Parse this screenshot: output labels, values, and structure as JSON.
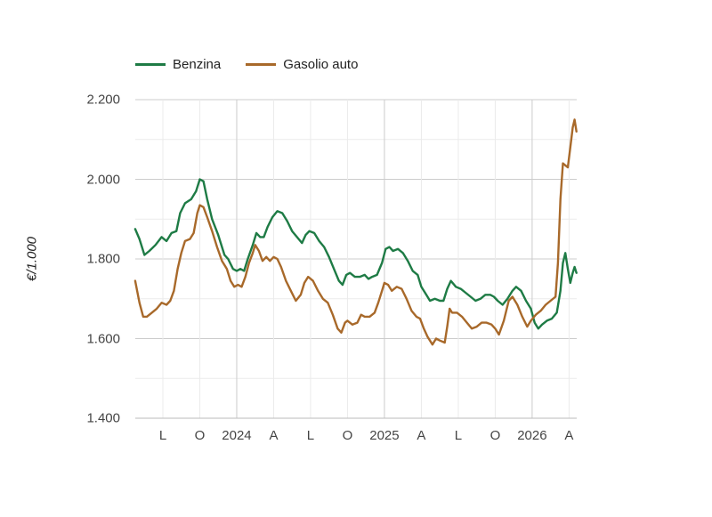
{
  "chart_data": {
    "type": "line",
    "title": "",
    "xlabel": "",
    "ylabel": "€/1.000",
    "ylim": [
      1.4,
      2.2
    ],
    "yticks": [
      "1.400",
      "1.600",
      "1.800",
      "2.000",
      "2.200"
    ],
    "ytick_values": [
      1.4,
      1.6,
      1.8,
      2.0,
      2.2
    ],
    "xticks": [
      "L",
      "O",
      "2024",
      "A",
      "L",
      "O",
      "2025",
      "A",
      "L",
      "O",
      "2026",
      "A"
    ],
    "xtick_months": [
      0,
      3,
      6,
      9,
      12,
      15,
      18,
      21,
      24,
      27,
      30,
      33
    ],
    "x_unit": "months since Jul 2023",
    "xlim": [
      -2.25,
      33.6
    ],
    "grid": true,
    "legend_position": "top",
    "series": [
      {
        "name": "Benzina",
        "color": "#1e7b45",
        "points": [
          [
            -2.25,
            1.875
          ],
          [
            -1.9,
            1.85
          ],
          [
            -1.5,
            1.81
          ],
          [
            -1.1,
            1.82
          ],
          [
            -0.6,
            1.835
          ],
          [
            -0.1,
            1.855
          ],
          [
            0.3,
            1.845
          ],
          [
            0.7,
            1.865
          ],
          [
            1.1,
            1.87
          ],
          [
            1.4,
            1.915
          ],
          [
            1.8,
            1.94
          ],
          [
            2.3,
            1.95
          ],
          [
            2.7,
            1.97
          ],
          [
            3.0,
            2.0
          ],
          [
            3.3,
            1.995
          ],
          [
            3.6,
            1.95
          ],
          [
            4.0,
            1.9
          ],
          [
            4.5,
            1.86
          ],
          [
            5.0,
            1.81
          ],
          [
            5.3,
            1.8
          ],
          [
            5.7,
            1.775
          ],
          [
            6.0,
            1.77
          ],
          [
            6.3,
            1.775
          ],
          [
            6.6,
            1.77
          ],
          [
            6.9,
            1.8
          ],
          [
            7.3,
            1.835
          ],
          [
            7.6,
            1.865
          ],
          [
            7.9,
            1.855
          ],
          [
            8.2,
            1.855
          ],
          [
            8.5,
            1.88
          ],
          [
            8.9,
            1.905
          ],
          [
            9.3,
            1.92
          ],
          [
            9.7,
            1.915
          ],
          [
            10.1,
            1.895
          ],
          [
            10.5,
            1.87
          ],
          [
            10.9,
            1.855
          ],
          [
            11.3,
            1.84
          ],
          [
            11.6,
            1.86
          ],
          [
            11.9,
            1.87
          ],
          [
            12.3,
            1.865
          ],
          [
            12.7,
            1.845
          ],
          [
            13.1,
            1.83
          ],
          [
            13.5,
            1.805
          ],
          [
            13.9,
            1.775
          ],
          [
            14.3,
            1.745
          ],
          [
            14.6,
            1.735
          ],
          [
            14.9,
            1.76
          ],
          [
            15.2,
            1.765
          ],
          [
            15.6,
            1.755
          ],
          [
            16.0,
            1.755
          ],
          [
            16.4,
            1.76
          ],
          [
            16.7,
            1.75
          ],
          [
            17.0,
            1.755
          ],
          [
            17.4,
            1.76
          ],
          [
            17.8,
            1.79
          ],
          [
            18.1,
            1.825
          ],
          [
            18.4,
            1.83
          ],
          [
            18.7,
            1.82
          ],
          [
            19.1,
            1.825
          ],
          [
            19.5,
            1.815
          ],
          [
            19.9,
            1.795
          ],
          [
            20.3,
            1.77
          ],
          [
            20.7,
            1.76
          ],
          [
            21.0,
            1.73
          ],
          [
            21.4,
            1.71
          ],
          [
            21.7,
            1.695
          ],
          [
            22.1,
            1.7
          ],
          [
            22.5,
            1.695
          ],
          [
            22.8,
            1.695
          ],
          [
            23.1,
            1.725
          ],
          [
            23.4,
            1.745
          ],
          [
            23.8,
            1.73
          ],
          [
            24.2,
            1.725
          ],
          [
            24.6,
            1.715
          ],
          [
            25.0,
            1.705
          ],
          [
            25.4,
            1.695
          ],
          [
            25.8,
            1.7
          ],
          [
            26.2,
            1.71
          ],
          [
            26.6,
            1.71
          ],
          [
            26.9,
            1.705
          ],
          [
            27.2,
            1.695
          ],
          [
            27.6,
            1.685
          ],
          [
            28.0,
            1.7
          ],
          [
            28.4,
            1.72
          ],
          [
            28.7,
            1.73
          ],
          [
            29.1,
            1.72
          ],
          [
            29.5,
            1.695
          ],
          [
            29.9,
            1.675
          ],
          [
            30.2,
            1.64
          ],
          [
            30.5,
            1.625
          ],
          [
            30.8,
            1.635
          ],
          [
            31.2,
            1.645
          ],
          [
            31.6,
            1.65
          ],
          [
            32.0,
            1.665
          ],
          [
            32.3,
            1.72
          ],
          [
            32.5,
            1.79
          ],
          [
            32.7,
            1.815
          ],
          [
            32.9,
            1.775
          ],
          [
            33.1,
            1.74
          ],
          [
            33.3,
            1.765
          ],
          [
            33.45,
            1.78
          ],
          [
            33.6,
            1.765
          ]
        ]
      },
      {
        "name": "Gasolio auto",
        "color": "#a8692a",
        "points": [
          [
            -2.25,
            1.745
          ],
          [
            -1.9,
            1.69
          ],
          [
            -1.6,
            1.655
          ],
          [
            -1.3,
            1.655
          ],
          [
            -0.9,
            1.665
          ],
          [
            -0.5,
            1.675
          ],
          [
            -0.1,
            1.69
          ],
          [
            0.3,
            1.685
          ],
          [
            0.6,
            1.695
          ],
          [
            0.9,
            1.72
          ],
          [
            1.2,
            1.775
          ],
          [
            1.5,
            1.815
          ],
          [
            1.8,
            1.845
          ],
          [
            2.2,
            1.85
          ],
          [
            2.5,
            1.865
          ],
          [
            2.8,
            1.915
          ],
          [
            3.0,
            1.935
          ],
          [
            3.3,
            1.93
          ],
          [
            3.6,
            1.905
          ],
          [
            4.0,
            1.87
          ],
          [
            4.4,
            1.83
          ],
          [
            4.8,
            1.795
          ],
          [
            5.2,
            1.775
          ],
          [
            5.5,
            1.745
          ],
          [
            5.8,
            1.73
          ],
          [
            6.1,
            1.735
          ],
          [
            6.4,
            1.73
          ],
          [
            6.7,
            1.755
          ],
          [
            7.0,
            1.79
          ],
          [
            7.3,
            1.815
          ],
          [
            7.5,
            1.835
          ],
          [
            7.8,
            1.82
          ],
          [
            8.1,
            1.795
          ],
          [
            8.4,
            1.805
          ],
          [
            8.7,
            1.795
          ],
          [
            9.0,
            1.805
          ],
          [
            9.3,
            1.8
          ],
          [
            9.6,
            1.78
          ],
          [
            10.0,
            1.745
          ],
          [
            10.4,
            1.72
          ],
          [
            10.8,
            1.695
          ],
          [
            11.2,
            1.71
          ],
          [
            11.5,
            1.74
          ],
          [
            11.8,
            1.755
          ],
          [
            12.2,
            1.745
          ],
          [
            12.6,
            1.72
          ],
          [
            13.0,
            1.7
          ],
          [
            13.4,
            1.69
          ],
          [
            13.8,
            1.66
          ],
          [
            14.2,
            1.625
          ],
          [
            14.5,
            1.615
          ],
          [
            14.8,
            1.64
          ],
          [
            15.0,
            1.645
          ],
          [
            15.4,
            1.635
          ],
          [
            15.8,
            1.64
          ],
          [
            16.1,
            1.66
          ],
          [
            16.4,
            1.655
          ],
          [
            16.8,
            1.655
          ],
          [
            17.2,
            1.665
          ],
          [
            17.5,
            1.69
          ],
          [
            17.8,
            1.72
          ],
          [
            18.0,
            1.74
          ],
          [
            18.3,
            1.735
          ],
          [
            18.6,
            1.72
          ],
          [
            19.0,
            1.73
          ],
          [
            19.4,
            1.725
          ],
          [
            19.8,
            1.7
          ],
          [
            20.2,
            1.67
          ],
          [
            20.6,
            1.655
          ],
          [
            20.9,
            1.65
          ],
          [
            21.2,
            1.625
          ],
          [
            21.5,
            1.605
          ],
          [
            21.9,
            1.585
          ],
          [
            22.2,
            1.6
          ],
          [
            22.5,
            1.595
          ],
          [
            22.9,
            1.59
          ],
          [
            23.1,
            1.63
          ],
          [
            23.3,
            1.675
          ],
          [
            23.5,
            1.665
          ],
          [
            23.9,
            1.665
          ],
          [
            24.3,
            1.655
          ],
          [
            24.7,
            1.64
          ],
          [
            25.1,
            1.625
          ],
          [
            25.5,
            1.63
          ],
          [
            25.9,
            1.64
          ],
          [
            26.3,
            1.64
          ],
          [
            26.7,
            1.635
          ],
          [
            27.0,
            1.625
          ],
          [
            27.3,
            1.61
          ],
          [
            27.7,
            1.645
          ],
          [
            28.1,
            1.695
          ],
          [
            28.4,
            1.705
          ],
          [
            28.8,
            1.685
          ],
          [
            29.2,
            1.655
          ],
          [
            29.6,
            1.63
          ],
          [
            29.9,
            1.645
          ],
          [
            30.3,
            1.66
          ],
          [
            30.7,
            1.67
          ],
          [
            31.1,
            1.685
          ],
          [
            31.5,
            1.695
          ],
          [
            31.9,
            1.705
          ],
          [
            32.1,
            1.79
          ],
          [
            32.3,
            1.95
          ],
          [
            32.5,
            2.04
          ],
          [
            32.7,
            2.035
          ],
          [
            32.9,
            2.03
          ],
          [
            33.1,
            2.08
          ],
          [
            33.3,
            2.13
          ],
          [
            33.45,
            2.15
          ],
          [
            33.6,
            2.12
          ]
        ]
      }
    ]
  },
  "legend": {
    "items": [
      {
        "label": "Benzina",
        "color": "#1e7b45"
      },
      {
        "label": "Gasolio auto",
        "color": "#a8692a"
      }
    ]
  },
  "axis": {
    "ylabel": "€/1.000"
  }
}
